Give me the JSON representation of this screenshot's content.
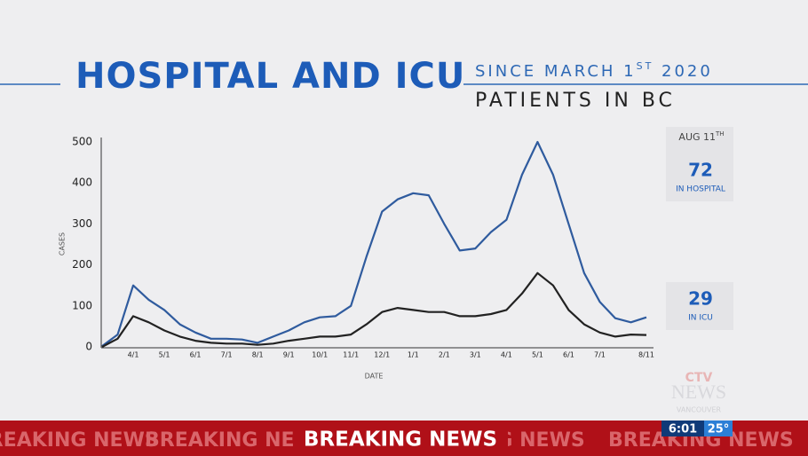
{
  "chart_data": {
    "type": "line",
    "title": "HOSPITAL AND ICU",
    "subtitle": [
      "SINCE MARCH 1",
      "ST",
      " 2020"
    ],
    "heading": "PATIENTS IN BC",
    "x_label": "DATE",
    "y_label": "CASES",
    "categories": [
      null,
      null,
      "4/1",
      null,
      "5/1",
      null,
      "6/1",
      null,
      "7/1",
      null,
      "8/1",
      null,
      "9/1",
      null,
      "10/1",
      null,
      "11/1",
      null,
      "12/1",
      null,
      "1/1",
      null,
      "2/1",
      null,
      "3/1",
      null,
      "4/1",
      null,
      "5/1",
      null,
      "6/1",
      null,
      "7/1",
      null,
      null,
      "8/11"
    ],
    "series": [
      {
        "name": "IN HOSPITAL",
        "color": "#2f5b9e",
        "values": [
          2,
          30,
          150,
          115,
          90,
          55,
          35,
          20,
          20,
          18,
          10,
          25,
          40,
          60,
          72,
          75,
          100,
          220,
          330,
          360,
          375,
          370,
          300,
          235,
          240,
          280,
          310,
          420,
          500,
          420,
          300,
          180,
          110,
          70,
          60,
          72
        ]
      },
      {
        "name": "IN ICU",
        "color": "#222222",
        "values": [
          0,
          20,
          75,
          60,
          40,
          25,
          15,
          10,
          8,
          8,
          5,
          8,
          15,
          20,
          25,
          25,
          30,
          55,
          85,
          95,
          90,
          85,
          85,
          75,
          75,
          80,
          90,
          130,
          180,
          150,
          90,
          55,
          35,
          25,
          30,
          29
        ]
      }
    ],
    "ylim": [
      0,
      500
    ],
    "yticks": [
      0,
      100,
      200,
      300,
      400,
      500
    ],
    "grid": false
  },
  "annotations": {
    "date": [
      "AUG 11",
      "TH"
    ],
    "hospital_count": "72",
    "hospital_label": "IN HOSPITAL",
    "icu_count": "29",
    "icu_label": "IN ICU"
  },
  "ticker": {
    "headline": "BREAKING NEWS",
    "time": "6:01",
    "temperature": "25°"
  },
  "logo": {
    "brand": "CTV",
    "name": "NEWS",
    "city": "VANCOUVER"
  }
}
